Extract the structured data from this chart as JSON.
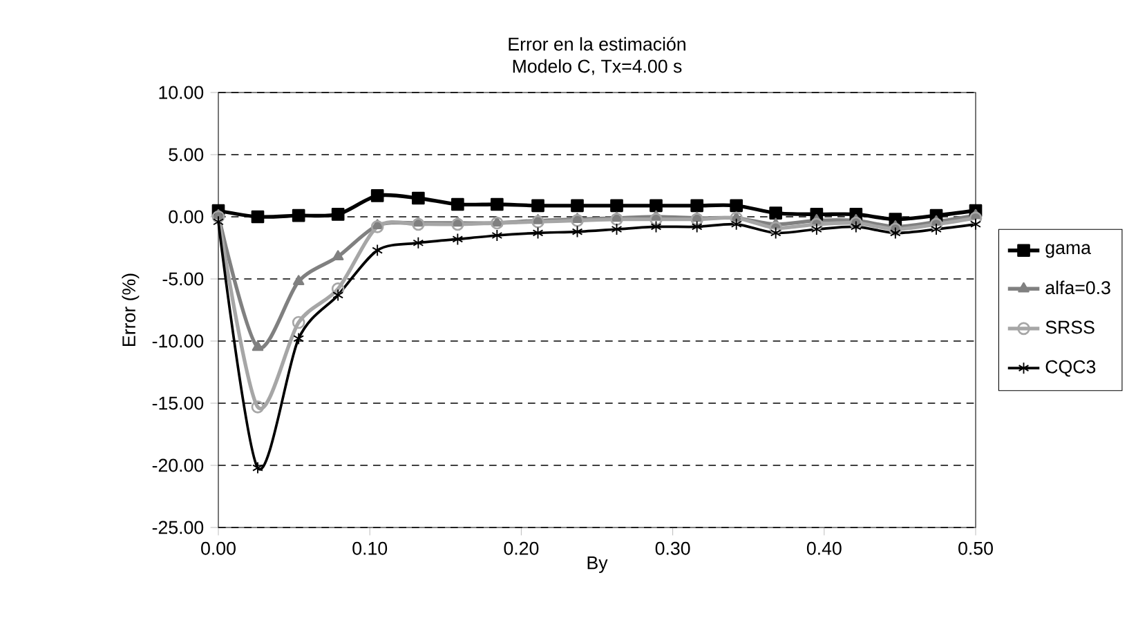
{
  "chart_data": {
    "type": "line",
    "title": "Error en la estimación",
    "subtitle": "Modelo C, Tx=4.00 s",
    "xlabel": "By",
    "ylabel": "Error (%)",
    "x": [
      0,
      0.026,
      0.053,
      0.079,
      0.105,
      0.132,
      0.158,
      0.184,
      0.211,
      0.237,
      0.263,
      0.289,
      0.316,
      0.342,
      0.368,
      0.395,
      0.421,
      0.447,
      0.474,
      0.5
    ],
    "series": [
      {
        "name": "gama",
        "color": "#000000",
        "marker": "square",
        "values": [
          0.5,
          0.0,
          0.1,
          0.2,
          1.7,
          1.5,
          1.0,
          1.0,
          0.9,
          0.9,
          0.9,
          0.9,
          0.9,
          0.9,
          0.3,
          0.2,
          0.2,
          -0.2,
          0.1,
          0.5
        ]
      },
      {
        "name": "alfa=0.3",
        "color": "#808080",
        "marker": "triangle",
        "values": [
          0.1,
          -10.5,
          -5.2,
          -3.2,
          -0.7,
          -0.5,
          -0.5,
          -0.5,
          -0.3,
          -0.2,
          -0.1,
          0.0,
          -0.1,
          -0.1,
          -0.6,
          -0.3,
          -0.3,
          -0.8,
          -0.4,
          0.1
        ]
      },
      {
        "name": "SRSS",
        "color": "#a6a6a6",
        "marker": "circle",
        "values": [
          0.0,
          -15.3,
          -8.5,
          -5.8,
          -0.8,
          -0.6,
          -0.6,
          -0.5,
          -0.4,
          -0.3,
          -0.2,
          -0.2,
          -0.2,
          -0.1,
          -0.9,
          -0.6,
          -0.5,
          -1.0,
          -0.6,
          -0.1
        ]
      },
      {
        "name": "CQC3",
        "color": "#000000",
        "marker": "cross",
        "values": [
          -0.4,
          -20.2,
          -9.8,
          -6.3,
          -2.7,
          -2.1,
          -1.8,
          -1.5,
          -1.3,
          -1.2,
          -1.0,
          -0.8,
          -0.8,
          -0.6,
          -1.3,
          -1.0,
          -0.8,
          -1.3,
          -1.0,
          -0.6
        ]
      }
    ],
    "xlim": [
      0,
      0.5
    ],
    "ylim": [
      -25,
      10
    ],
    "xticks": [
      {
        "value": 0,
        "label": "0.00"
      },
      {
        "value": 0.1,
        "label": "0.10"
      },
      {
        "value": 0.2,
        "label": "0.20"
      },
      {
        "value": 0.3,
        "label": "0.30"
      },
      {
        "value": 0.4,
        "label": "0.40"
      },
      {
        "value": 0.5,
        "label": "0.50"
      }
    ],
    "yticks": [
      {
        "value": -25,
        "label": "-25.00"
      },
      {
        "value": -20,
        "label": "-20.00"
      },
      {
        "value": -15,
        "label": "-15.00"
      },
      {
        "value": -10,
        "label": "-10.00"
      },
      {
        "value": -5,
        "label": "-5.00"
      },
      {
        "value": 0,
        "label": "0.00"
      },
      {
        "value": 5,
        "label": "5.00"
      },
      {
        "value": 10,
        "label": "10.00"
      }
    ],
    "grid": "y",
    "legend": "right",
    "line_style": "solid"
  }
}
